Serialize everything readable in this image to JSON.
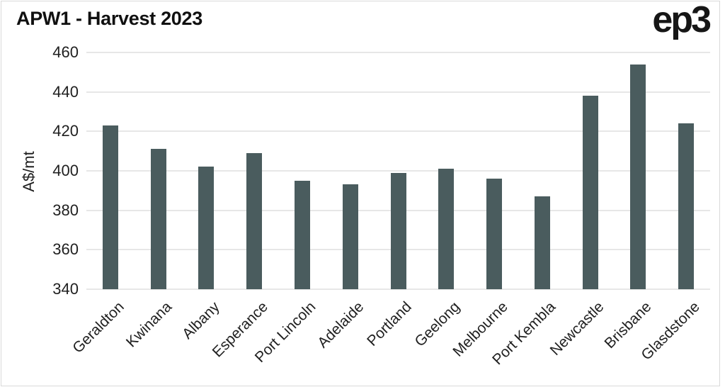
{
  "header": {
    "title": "APW1 - Harvest 2023",
    "logo": "ep3"
  },
  "chart_data": {
    "type": "bar",
    "title": "APW1 - Harvest 2023",
    "xlabel": "",
    "ylabel": "A$/mt",
    "categories": [
      "Geraldton",
      "Kwinana",
      "Albany",
      "Esperance",
      "Port Lincoln",
      "Adelaide",
      "Portland",
      "Geelong",
      "Melbourne",
      "Port Kembla",
      "Newcastle",
      "Brisbane",
      "Glasdstone"
    ],
    "values": [
      423,
      411,
      402,
      409,
      395,
      393,
      399,
      401,
      396,
      387,
      438,
      454,
      424
    ],
    "ylim": [
      340,
      460
    ],
    "yticks": [
      340,
      360,
      380,
      400,
      420,
      440,
      460
    ],
    "grid": true,
    "legend": "none",
    "bar_color": "#4A5C5E",
    "gridline_color": "#E7E7E7",
    "text_color": "#1F1F1F"
  }
}
